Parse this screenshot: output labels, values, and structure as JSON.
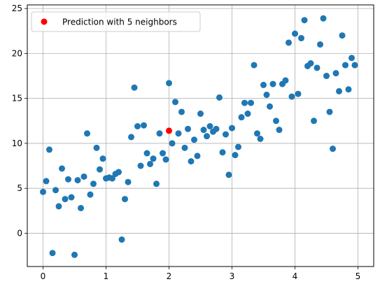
{
  "chart_data": {
    "type": "scatter",
    "title": "",
    "xlabel": "",
    "ylabel": "",
    "xlim": [
      -0.25,
      5.25
    ],
    "ylim": [
      -3.7,
      25.4
    ],
    "xticks": [
      0,
      1,
      2,
      3,
      4,
      5
    ],
    "xtick_labels": [
      "0",
      "1",
      "2",
      "3",
      "4",
      "5"
    ],
    "yticks": [
      0,
      5,
      10,
      15,
      20,
      25
    ],
    "ytick_labels": [
      "0",
      "5",
      "10",
      "15",
      "20",
      "25"
    ],
    "grid": true,
    "legend_position": "top-left",
    "series": [
      {
        "color": "#1f77b4",
        "points": [
          [
            0.0,
            4.6
          ],
          [
            0.05,
            5.8
          ],
          [
            0.1,
            9.3
          ],
          [
            0.15,
            -2.2
          ],
          [
            0.2,
            4.8
          ],
          [
            0.25,
            3.0
          ],
          [
            0.3,
            7.2
          ],
          [
            0.35,
            3.8
          ],
          [
            0.4,
            6.0
          ],
          [
            0.45,
            4.0
          ],
          [
            0.5,
            -2.4
          ],
          [
            0.55,
            5.9
          ],
          [
            0.6,
            2.8
          ],
          [
            0.65,
            6.3
          ],
          [
            0.7,
            11.1
          ],
          [
            0.75,
            4.3
          ],
          [
            0.8,
            5.5
          ],
          [
            0.85,
            9.5
          ],
          [
            0.9,
            7.1
          ],
          [
            0.95,
            8.3
          ],
          [
            1.0,
            6.1
          ],
          [
            1.05,
            6.2
          ],
          [
            1.1,
            6.1
          ],
          [
            1.15,
            6.6
          ],
          [
            1.2,
            6.8
          ],
          [
            1.25,
            -0.7
          ],
          [
            1.3,
            3.8
          ],
          [
            1.35,
            5.7
          ],
          [
            1.4,
            10.7
          ],
          [
            1.45,
            16.2
          ],
          [
            1.5,
            11.9
          ],
          [
            1.55,
            7.5
          ],
          [
            1.6,
            12.0
          ],
          [
            1.65,
            8.9
          ],
          [
            1.7,
            7.7
          ],
          [
            1.75,
            8.3
          ],
          [
            1.8,
            5.5
          ],
          [
            1.85,
            11.1
          ],
          [
            1.9,
            8.9
          ],
          [
            1.95,
            8.2
          ],
          [
            2.0,
            16.7
          ],
          [
            2.05,
            10.0
          ],
          [
            2.1,
            14.6
          ],
          [
            2.15,
            11.1
          ],
          [
            2.2,
            13.5
          ],
          [
            2.25,
            9.5
          ],
          [
            2.3,
            11.6
          ],
          [
            2.35,
            8.0
          ],
          [
            2.4,
            10.4
          ],
          [
            2.45,
            8.6
          ],
          [
            2.5,
            13.3
          ],
          [
            2.55,
            11.5
          ],
          [
            2.6,
            10.8
          ],
          [
            2.65,
            11.9
          ],
          [
            2.7,
            11.3
          ],
          [
            2.75,
            11.6
          ],
          [
            2.8,
            15.1
          ],
          [
            2.85,
            9.0
          ],
          [
            2.9,
            11.0
          ],
          [
            2.95,
            6.5
          ],
          [
            3.0,
            11.7
          ],
          [
            3.05,
            8.7
          ],
          [
            3.1,
            9.6
          ],
          [
            3.15,
            12.9
          ],
          [
            3.2,
            14.5
          ],
          [
            3.25,
            13.3
          ],
          [
            3.3,
            14.5
          ],
          [
            3.35,
            18.7
          ],
          [
            3.4,
            11.1
          ],
          [
            3.45,
            10.5
          ],
          [
            3.5,
            16.5
          ],
          [
            3.55,
            15.4
          ],
          [
            3.6,
            14.1
          ],
          [
            3.65,
            16.6
          ],
          [
            3.7,
            12.5
          ],
          [
            3.75,
            11.5
          ],
          [
            3.8,
            16.6
          ],
          [
            3.85,
            17.0
          ],
          [
            3.9,
            21.2
          ],
          [
            3.95,
            15.2
          ],
          [
            4.0,
            22.2
          ],
          [
            4.05,
            15.5
          ],
          [
            4.1,
            21.7
          ],
          [
            4.15,
            23.7
          ],
          [
            4.2,
            18.6
          ],
          [
            4.25,
            18.9
          ],
          [
            4.3,
            12.5
          ],
          [
            4.35,
            18.4
          ],
          [
            4.4,
            21.0
          ],
          [
            4.45,
            23.9
          ],
          [
            4.5,
            17.5
          ],
          [
            4.55,
            13.5
          ],
          [
            4.6,
            9.4
          ],
          [
            4.65,
            17.8
          ],
          [
            4.7,
            15.8
          ],
          [
            4.75,
            22.0
          ],
          [
            4.8,
            18.7
          ],
          [
            4.85,
            16.0
          ],
          [
            4.9,
            19.5
          ],
          [
            4.95,
            18.7
          ]
        ]
      },
      {
        "name": "Prediction with 5 neighbors",
        "color": "#ff0000",
        "points": [
          [
            2.0,
            11.4
          ]
        ]
      }
    ]
  }
}
